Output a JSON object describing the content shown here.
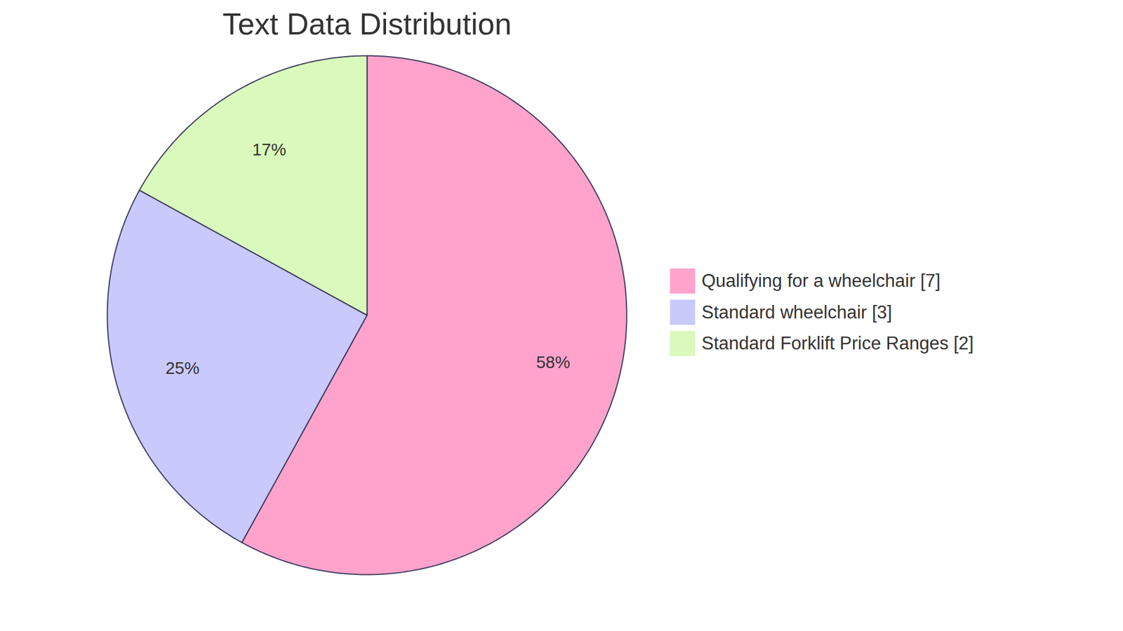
{
  "chart_data": {
    "type": "pie",
    "title": "Text Data Distribution",
    "categories": [
      "Qualifying for a wheelchair [7]",
      "Standard wheelchair [3]",
      "Standard Forklift Price Ranges [2]"
    ],
    "values": [
      58,
      25,
      17
    ],
    "value_labels": [
      "58%",
      "25%",
      "17%"
    ],
    "colors": [
      "#ffa3cd",
      "#c9c9fc",
      "#daf9bc"
    ],
    "data_labels": true,
    "legend": "right"
  }
}
